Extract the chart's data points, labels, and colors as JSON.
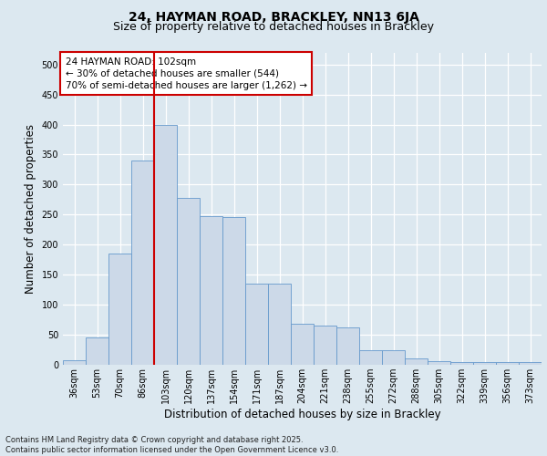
{
  "title1": "24, HAYMAN ROAD, BRACKLEY, NN13 6JA",
  "title2": "Size of property relative to detached houses in Brackley",
  "xlabel": "Distribution of detached houses by size in Brackley",
  "ylabel": "Number of detached properties",
  "categories": [
    "36sqm",
    "53sqm",
    "70sqm",
    "86sqm",
    "103sqm",
    "120sqm",
    "137sqm",
    "154sqm",
    "171sqm",
    "187sqm",
    "204sqm",
    "221sqm",
    "238sqm",
    "255sqm",
    "272sqm",
    "288sqm",
    "305sqm",
    "322sqm",
    "339sqm",
    "356sqm",
    "373sqm"
  ],
  "values": [
    8,
    45,
    185,
    340,
    400,
    278,
    247,
    246,
    135,
    135,
    68,
    65,
    62,
    25,
    25,
    10,
    6,
    4,
    4,
    4,
    5
  ],
  "bar_color": "#ccd9e8",
  "bar_edge_color": "#6699cc",
  "line_color": "#cc0000",
  "annotation_text": "24 HAYMAN ROAD: 102sqm\n← 30% of detached houses are smaller (544)\n70% of semi-detached houses are larger (1,262) →",
  "annotation_box_color": "#ffffff",
  "annotation_box_edge": "#cc0000",
  "ylim": [
    0,
    520
  ],
  "yticks": [
    0,
    50,
    100,
    150,
    200,
    250,
    300,
    350,
    400,
    450,
    500
  ],
  "footer": "Contains HM Land Registry data © Crown copyright and database right 2025.\nContains public sector information licensed under the Open Government Licence v3.0.",
  "bg_color": "#dce8f0",
  "plot_bg_color": "#dce8f0",
  "grid_color": "#ffffff",
  "title_fontsize": 10,
  "subtitle_fontsize": 9,
  "tick_fontsize": 7,
  "label_fontsize": 8.5,
  "annotation_fontsize": 7.5,
  "footer_fontsize": 6
}
